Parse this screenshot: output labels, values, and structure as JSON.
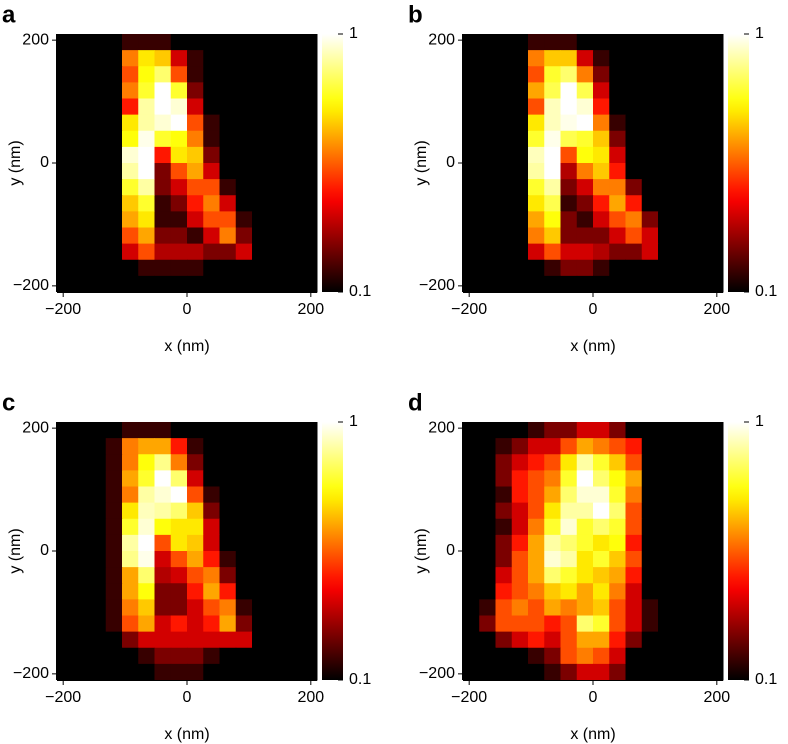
{
  "chart_data": [
    {
      "type": "heatmap",
      "label": "a",
      "xlabel": "x (nm)",
      "ylabel": "y (nm)",
      "xlim": [
        -210,
        210
      ],
      "ylim": [
        -210,
        210
      ],
      "xticks": [
        {
          "value": -200,
          "label": "−200"
        },
        0,
        200
      ],
      "yticks": [
        {
          "value": -200,
          "label": "−200"
        },
        0,
        200
      ],
      "colormap": "hot",
      "clim": [
        0.1,
        1
      ],
      "cticks": [
        0.1,
        1
      ],
      "log_color": true,
      "z": [
        [
          0.1,
          0.1,
          0.1,
          0.1,
          0.12,
          0.12,
          0.12,
          0.1,
          0.1,
          0.1,
          0.1,
          0.1,
          0.1,
          0.1,
          0.1,
          0.1
        ],
        [
          0.1,
          0.1,
          0.1,
          0.1,
          0.35,
          0.5,
          0.45,
          0.2,
          0.12,
          0.1,
          0.1,
          0.1,
          0.1,
          0.1,
          0.1,
          0.1
        ],
        [
          0.1,
          0.1,
          0.1,
          0.1,
          0.3,
          0.55,
          0.7,
          0.3,
          0.12,
          0.1,
          0.1,
          0.1,
          0.1,
          0.1,
          0.1,
          0.1
        ],
        [
          0.1,
          0.1,
          0.1,
          0.1,
          0.35,
          0.6,
          1,
          0.6,
          0.15,
          0.1,
          0.1,
          0.1,
          0.1,
          0.1,
          0.1,
          0.1
        ],
        [
          0.1,
          0.1,
          0.1,
          0.1,
          0.25,
          0.8,
          1,
          0.9,
          0.2,
          0.1,
          0.1,
          0.1,
          0.1,
          0.1,
          0.1,
          0.1
        ],
        [
          0.1,
          0.1,
          0.1,
          0.1,
          0.5,
          0.8,
          0.9,
          1,
          0.3,
          0.12,
          0.1,
          0.1,
          0.1,
          0.1,
          0.1,
          0.1
        ],
        [
          0.1,
          0.1,
          0.1,
          0.1,
          0.55,
          0.95,
          0.6,
          0.55,
          0.35,
          0.12,
          0.1,
          0.1,
          0.1,
          0.1,
          0.1,
          0.1
        ],
        [
          0.1,
          0.1,
          0.1,
          0.1,
          0.9,
          1,
          0.25,
          0.5,
          0.45,
          0.15,
          0.1,
          0.1,
          0.1,
          0.1,
          0.1,
          0.1
        ],
        [
          0.1,
          0.1,
          0.1,
          0.1,
          0.8,
          1,
          0.15,
          0.3,
          0.4,
          0.2,
          0.1,
          0.1,
          0.1,
          0.1,
          0.1,
          0.1
        ],
        [
          0.1,
          0.1,
          0.1,
          0.1,
          0.6,
          0.8,
          0.15,
          0.2,
          0.3,
          0.3,
          0.12,
          0.1,
          0.1,
          0.1,
          0.1,
          0.1
        ],
        [
          0.1,
          0.1,
          0.1,
          0.1,
          0.45,
          0.6,
          0.12,
          0.15,
          0.25,
          0.35,
          0.2,
          0.1,
          0.1,
          0.1,
          0.1,
          0.1
        ],
        [
          0.1,
          0.1,
          0.1,
          0.1,
          0.4,
          0.5,
          0.12,
          0.12,
          0.2,
          0.3,
          0.3,
          0.12,
          0.1,
          0.1,
          0.1,
          0.1
        ],
        [
          0.1,
          0.1,
          0.1,
          0.1,
          0.3,
          0.4,
          0.15,
          0.15,
          0.12,
          0.2,
          0.35,
          0.15,
          0.1,
          0.1,
          0.1,
          0.1
        ],
        [
          0.1,
          0.1,
          0.1,
          0.1,
          0.2,
          0.3,
          0.18,
          0.18,
          0.18,
          0.15,
          0.15,
          0.2,
          0.1,
          0.1,
          0.1,
          0.1
        ],
        [
          0.1,
          0.1,
          0.1,
          0.1,
          0.1,
          0.12,
          0.12,
          0.12,
          0.12,
          0.1,
          0.1,
          0.1,
          0.1,
          0.1,
          0.1,
          0.1
        ],
        [
          0.1,
          0.1,
          0.1,
          0.1,
          0.1,
          0.1,
          0.1,
          0.1,
          0.1,
          0.1,
          0.1,
          0.1,
          0.1,
          0.1,
          0.1,
          0.1
        ]
      ]
    },
    {
      "type": "heatmap",
      "label": "b",
      "xlabel": "x (nm)",
      "ylabel": "y (nm)",
      "xlim": [
        -210,
        210
      ],
      "ylim": [
        -210,
        210
      ],
      "xticks": [
        {
          "value": -200,
          "label": "−200"
        },
        0,
        200
      ],
      "yticks": [
        {
          "value": -200,
          "label": "−200"
        },
        0,
        200
      ],
      "colormap": "hot",
      "clim": [
        0.1,
        1
      ],
      "cticks": [
        0.1,
        1
      ],
      "log_color": true,
      "z": [
        [
          0.1,
          0.1,
          0.1,
          0.1,
          0.12,
          0.12,
          0.12,
          0.1,
          0.1,
          0.1,
          0.1,
          0.1,
          0.1,
          0.1,
          0.1,
          0.1
        ],
        [
          0.1,
          0.1,
          0.1,
          0.1,
          0.35,
          0.45,
          0.45,
          0.2,
          0.12,
          0.1,
          0.1,
          0.1,
          0.1,
          0.1,
          0.1,
          0.1
        ],
        [
          0.1,
          0.1,
          0.1,
          0.1,
          0.3,
          0.6,
          0.7,
          0.35,
          0.15,
          0.1,
          0.1,
          0.1,
          0.1,
          0.1,
          0.1,
          0.1
        ],
        [
          0.1,
          0.1,
          0.1,
          0.1,
          0.4,
          0.65,
          1,
          0.65,
          0.2,
          0.1,
          0.1,
          0.1,
          0.1,
          0.1,
          0.1,
          0.1
        ],
        [
          0.1,
          0.1,
          0.1,
          0.1,
          0.3,
          0.85,
          1,
          0.9,
          0.25,
          0.1,
          0.1,
          0.1,
          0.1,
          0.1,
          0.1,
          0.1
        ],
        [
          0.1,
          0.1,
          0.1,
          0.1,
          0.5,
          0.85,
          0.95,
          1,
          0.35,
          0.12,
          0.1,
          0.1,
          0.1,
          0.1,
          0.1,
          0.1
        ],
        [
          0.1,
          0.1,
          0.1,
          0.1,
          0.6,
          0.95,
          0.65,
          0.6,
          0.45,
          0.15,
          0.1,
          0.1,
          0.1,
          0.1,
          0.1,
          0.1
        ],
        [
          0.1,
          0.1,
          0.1,
          0.1,
          0.85,
          1,
          0.3,
          0.55,
          0.5,
          0.2,
          0.1,
          0.1,
          0.1,
          0.1,
          0.1,
          0.1
        ],
        [
          0.1,
          0.1,
          0.1,
          0.1,
          0.8,
          1,
          0.18,
          0.35,
          0.45,
          0.25,
          0.1,
          0.1,
          0.1,
          0.1,
          0.1,
          0.1
        ],
        [
          0.1,
          0.1,
          0.1,
          0.1,
          0.6,
          0.8,
          0.15,
          0.2,
          0.35,
          0.35,
          0.15,
          0.1,
          0.1,
          0.1,
          0.1,
          0.1
        ],
        [
          0.1,
          0.1,
          0.1,
          0.1,
          0.5,
          0.65,
          0.12,
          0.15,
          0.25,
          0.4,
          0.25,
          0.1,
          0.1,
          0.1,
          0.1,
          0.1
        ],
        [
          0.1,
          0.1,
          0.1,
          0.1,
          0.4,
          0.55,
          0.15,
          0.12,
          0.2,
          0.3,
          0.35,
          0.15,
          0.1,
          0.1,
          0.1,
          0.1
        ],
        [
          0.1,
          0.1,
          0.1,
          0.1,
          0.35,
          0.45,
          0.15,
          0.15,
          0.15,
          0.2,
          0.3,
          0.2,
          0.1,
          0.1,
          0.1,
          0.1
        ],
        [
          0.1,
          0.1,
          0.1,
          0.1,
          0.2,
          0.3,
          0.2,
          0.2,
          0.18,
          0.15,
          0.15,
          0.2,
          0.1,
          0.1,
          0.1,
          0.1
        ],
        [
          0.1,
          0.1,
          0.1,
          0.1,
          0.1,
          0.12,
          0.15,
          0.15,
          0.12,
          0.1,
          0.1,
          0.1,
          0.1,
          0.1,
          0.1,
          0.1
        ],
        [
          0.1,
          0.1,
          0.1,
          0.1,
          0.1,
          0.1,
          0.1,
          0.1,
          0.1,
          0.1,
          0.1,
          0.1,
          0.1,
          0.1,
          0.1,
          0.1
        ]
      ]
    },
    {
      "type": "heatmap",
      "label": "c",
      "xlabel": "x (nm)",
      "ylabel": "y (nm)",
      "xlim": [
        -210,
        210
      ],
      "ylim": [
        -210,
        210
      ],
      "xticks": [
        {
          "value": -200,
          "label": "−200"
        },
        0,
        200
      ],
      "yticks": [
        {
          "value": -200,
          "label": "−200"
        },
        0,
        200
      ],
      "colormap": "hot",
      "clim": [
        0.1,
        1
      ],
      "cticks": [
        0.1,
        1
      ],
      "log_color": true,
      "z": [
        [
          0.1,
          0.1,
          0.1,
          0.1,
          0.12,
          0.12,
          0.12,
          0.1,
          0.1,
          0.1,
          0.1,
          0.1,
          0.1,
          0.1,
          0.1,
          0.1
        ],
        [
          0.1,
          0.1,
          0.1,
          0.12,
          0.35,
          0.4,
          0.4,
          0.25,
          0.12,
          0.1,
          0.1,
          0.1,
          0.1,
          0.1,
          0.1,
          0.1
        ],
        [
          0.1,
          0.1,
          0.1,
          0.12,
          0.35,
          0.55,
          0.75,
          0.35,
          0.15,
          0.1,
          0.1,
          0.1,
          0.1,
          0.1,
          0.1,
          0.1
        ],
        [
          0.1,
          0.1,
          0.1,
          0.12,
          0.4,
          0.6,
          1,
          0.7,
          0.2,
          0.1,
          0.1,
          0.1,
          0.1,
          0.1,
          0.1,
          0.1
        ],
        [
          0.1,
          0.1,
          0.1,
          0.12,
          0.35,
          0.8,
          0.9,
          1,
          0.3,
          0.12,
          0.1,
          0.1,
          0.1,
          0.1,
          0.1,
          0.1
        ],
        [
          0.1,
          0.1,
          0.1,
          0.12,
          0.5,
          0.85,
          0.8,
          0.7,
          0.45,
          0.15,
          0.1,
          0.1,
          0.1,
          0.1,
          0.1,
          0.1
        ],
        [
          0.1,
          0.1,
          0.1,
          0.12,
          0.6,
          0.9,
          0.55,
          0.5,
          0.5,
          0.2,
          0.1,
          0.1,
          0.1,
          0.1,
          0.1,
          0.1
        ],
        [
          0.1,
          0.1,
          0.1,
          0.12,
          0.8,
          1,
          0.3,
          0.5,
          0.45,
          0.2,
          0.1,
          0.1,
          0.1,
          0.1,
          0.1,
          0.1
        ],
        [
          0.1,
          0.1,
          0.1,
          0.12,
          0.75,
          0.95,
          0.2,
          0.3,
          0.4,
          0.25,
          0.12,
          0.1,
          0.1,
          0.1,
          0.1,
          0.1
        ],
        [
          0.1,
          0.1,
          0.1,
          0.12,
          0.4,
          0.7,
          0.18,
          0.2,
          0.3,
          0.35,
          0.15,
          0.1,
          0.1,
          0.1,
          0.1,
          0.1
        ],
        [
          0.1,
          0.1,
          0.1,
          0.12,
          0.4,
          0.55,
          0.15,
          0.15,
          0.25,
          0.4,
          0.25,
          0.1,
          0.1,
          0.1,
          0.1,
          0.1
        ],
        [
          0.1,
          0.1,
          0.1,
          0.12,
          0.35,
          0.45,
          0.15,
          0.15,
          0.2,
          0.3,
          0.35,
          0.12,
          0.1,
          0.1,
          0.1,
          0.1
        ],
        [
          0.1,
          0.1,
          0.1,
          0.12,
          0.3,
          0.4,
          0.2,
          0.25,
          0.2,
          0.25,
          0.4,
          0.15,
          0.1,
          0.1,
          0.1,
          0.1
        ],
        [
          0.1,
          0.1,
          0.1,
          0.1,
          0.15,
          0.2,
          0.2,
          0.2,
          0.2,
          0.2,
          0.2,
          0.2,
          0.1,
          0.1,
          0.1,
          0.1
        ],
        [
          0.1,
          0.1,
          0.1,
          0.1,
          0.1,
          0.12,
          0.15,
          0.15,
          0.15,
          0.12,
          0.1,
          0.1,
          0.1,
          0.1,
          0.1,
          0.1
        ],
        [
          0.1,
          0.1,
          0.1,
          0.1,
          0.1,
          0.1,
          0.12,
          0.12,
          0.12,
          0.1,
          0.1,
          0.1,
          0.1,
          0.1,
          0.1,
          0.1
        ]
      ]
    },
    {
      "type": "heatmap",
      "label": "d",
      "xlabel": "x (nm)",
      "ylabel": "y (nm)",
      "xlim": [
        -210,
        210
      ],
      "ylim": [
        -210,
        210
      ],
      "xticks": [
        {
          "value": -200,
          "label": "−200"
        },
        0,
        200
      ],
      "yticks": [
        {
          "value": -200,
          "label": "−200"
        },
        0,
        200
      ],
      "colormap": "hot",
      "clim": [
        0.1,
        1
      ],
      "cticks": [
        0.1,
        1
      ],
      "log_color": true,
      "z": [
        [
          0.1,
          0.1,
          0.1,
          0.1,
          0.12,
          0.15,
          0.15,
          0.2,
          0.2,
          0.15,
          0.1,
          0.1,
          0.1,
          0.1,
          0.1,
          0.1
        ],
        [
          0.1,
          0.1,
          0.12,
          0.15,
          0.2,
          0.2,
          0.3,
          0.4,
          0.35,
          0.3,
          0.25,
          0.1,
          0.1,
          0.1,
          0.1,
          0.1
        ],
        [
          0.1,
          0.1,
          0.15,
          0.2,
          0.25,
          0.3,
          0.5,
          0.8,
          0.6,
          0.45,
          0.3,
          0.1,
          0.1,
          0.1,
          0.1,
          0.1
        ],
        [
          0.1,
          0.1,
          0.15,
          0.25,
          0.3,
          0.35,
          0.6,
          1,
          0.7,
          0.55,
          0.4,
          0.1,
          0.1,
          0.1,
          0.1,
          0.1
        ],
        [
          0.1,
          0.1,
          0.12,
          0.25,
          0.3,
          0.4,
          0.7,
          0.9,
          0.9,
          0.6,
          0.35,
          0.1,
          0.1,
          0.1,
          0.1,
          0.1
        ],
        [
          0.1,
          0.1,
          0.15,
          0.2,
          0.3,
          0.5,
          0.8,
          0.8,
          1,
          0.7,
          0.3,
          0.1,
          0.1,
          0.1,
          0.1,
          0.1
        ],
        [
          0.1,
          0.1,
          0.12,
          0.2,
          0.35,
          0.6,
          0.9,
          0.6,
          0.7,
          0.6,
          0.3,
          0.1,
          0.1,
          0.1,
          0.1,
          0.1
        ],
        [
          0.1,
          0.1,
          0.15,
          0.25,
          0.4,
          0.8,
          0.7,
          0.6,
          0.5,
          0.55,
          0.25,
          0.1,
          0.1,
          0.1,
          0.1,
          0.1
        ],
        [
          0.1,
          0.1,
          0.15,
          0.3,
          0.4,
          0.9,
          0.8,
          0.5,
          0.6,
          0.45,
          0.3,
          0.1,
          0.1,
          0.1,
          0.1,
          0.1
        ],
        [
          0.1,
          0.1,
          0.2,
          0.3,
          0.4,
          0.7,
          0.6,
          0.5,
          0.45,
          0.4,
          0.25,
          0.1,
          0.1,
          0.1,
          0.1,
          0.1
        ],
        [
          0.1,
          0.1,
          0.25,
          0.3,
          0.35,
          0.45,
          0.5,
          0.4,
          0.5,
          0.35,
          0.2,
          0.1,
          0.1,
          0.1,
          0.1,
          0.1
        ],
        [
          0.1,
          0.12,
          0.3,
          0.35,
          0.3,
          0.4,
          0.35,
          0.4,
          0.45,
          0.3,
          0.2,
          0.12,
          0.1,
          0.1,
          0.1,
          0.1
        ],
        [
          0.1,
          0.15,
          0.3,
          0.3,
          0.3,
          0.25,
          0.3,
          0.7,
          0.6,
          0.3,
          0.2,
          0.12,
          0.1,
          0.1,
          0.1,
          0.1
        ],
        [
          0.1,
          0.1,
          0.15,
          0.2,
          0.25,
          0.2,
          0.3,
          0.4,
          0.4,
          0.25,
          0.15,
          0.1,
          0.1,
          0.1,
          0.1,
          0.1
        ],
        [
          0.1,
          0.1,
          0.1,
          0.1,
          0.12,
          0.15,
          0.3,
          0.35,
          0.3,
          0.2,
          0.1,
          0.1,
          0.1,
          0.1,
          0.1,
          0.1
        ],
        [
          0.1,
          0.1,
          0.1,
          0.1,
          0.1,
          0.12,
          0.15,
          0.2,
          0.2,
          0.15,
          0.1,
          0.1,
          0.1,
          0.1,
          0.1,
          0.1
        ]
      ]
    }
  ]
}
